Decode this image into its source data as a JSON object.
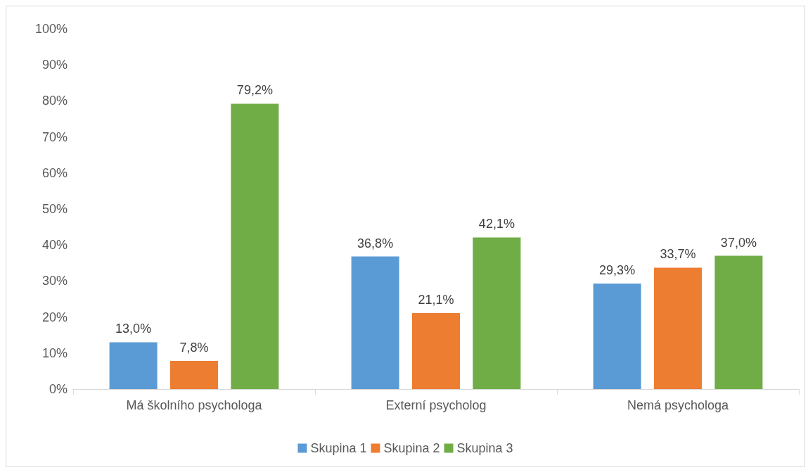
{
  "chart_data": {
    "type": "bar",
    "categories": [
      "Má školního psychologa",
      "Externí psycholog",
      "Nemá psychologa"
    ],
    "series": [
      {
        "name": "Skupina 1",
        "color": "#5b9bd5",
        "values": [
          13.0,
          36.8,
          29.3
        ],
        "value_labels": [
          "13,0%",
          "36,8%",
          "29,3%"
        ]
      },
      {
        "name": "Skupina 2",
        "color": "#ed7d31",
        "values": [
          7.8,
          21.1,
          33.7
        ],
        "value_labels": [
          "7,8%",
          "21,1%",
          "33,7%"
        ]
      },
      {
        "name": "Skupina 3",
        "color": "#70ad47",
        "values": [
          79.2,
          42.1,
          37.0
        ],
        "value_labels": [
          "79,2%",
          "42,1%",
          "37,0%"
        ]
      }
    ],
    "ylim": [
      0,
      100
    ],
    "yticks": [
      {
        "value": 0,
        "label": "0%"
      },
      {
        "value": 10,
        "label": "10%"
      },
      {
        "value": 20,
        "label": "20%"
      },
      {
        "value": 30,
        "label": "30%"
      },
      {
        "value": 40,
        "label": "40%"
      },
      {
        "value": 50,
        "label": "50%"
      },
      {
        "value": 60,
        "label": "60%"
      },
      {
        "value": 70,
        "label": "70%"
      },
      {
        "value": 80,
        "label": "80%"
      },
      {
        "value": 90,
        "label": "90%"
      },
      {
        "value": 100,
        "label": "100%"
      }
    ],
    "grid": false,
    "legend": "bottom"
  }
}
